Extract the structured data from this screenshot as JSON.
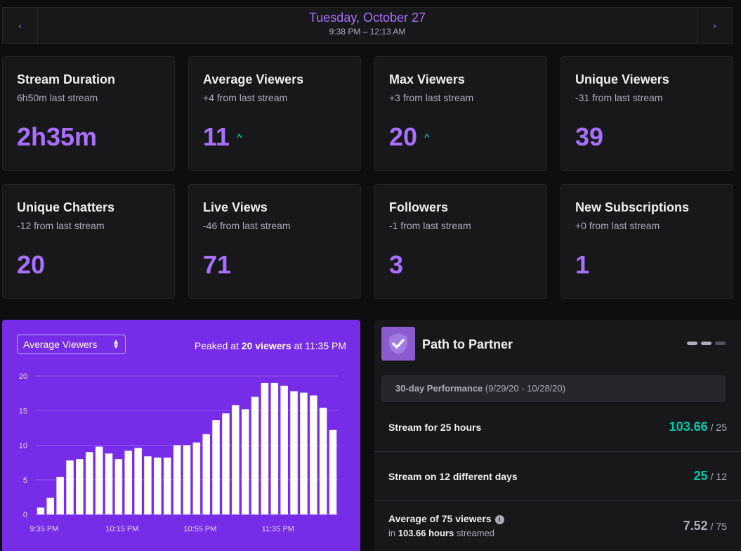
{
  "date_nav": {
    "prev_icon": "‹",
    "next_icon": "›",
    "title": "Tuesday, October 27",
    "range": "9:38 PM – 12:13 AM"
  },
  "stats": [
    {
      "title": "Stream Duration",
      "sub": "6h50m last stream",
      "value": "2h35m",
      "trend": ""
    },
    {
      "title": "Average Viewers",
      "sub": "+4 from last stream",
      "value": "11",
      "trend": "up"
    },
    {
      "title": "Max Viewers",
      "sub": "+3 from last stream",
      "value": "20",
      "trend": "up"
    },
    {
      "title": "Unique Viewers",
      "sub": "-31 from last stream",
      "value": "39",
      "trend": ""
    },
    {
      "title": "Unique Chatters",
      "sub": "-12 from last stream",
      "value": "20",
      "trend": ""
    },
    {
      "title": "Live Views",
      "sub": "-46 from last stream",
      "value": "71",
      "trend": ""
    },
    {
      "title": "Followers",
      "sub": "-1 from last stream",
      "value": "3",
      "trend": ""
    },
    {
      "title": "New Subscriptions",
      "sub": "+0 from last stream",
      "value": "1",
      "trend": ""
    }
  ],
  "trend_icon": "^",
  "chart_panel": {
    "select_value": "Average Viewers",
    "peak_prefix": "Peaked at ",
    "peak_value": "20 viewers",
    "peak_suffix": " at 11:35 PM"
  },
  "chart_data": {
    "type": "bar",
    "ylim": [
      0,
      20
    ],
    "yticks": [
      0,
      5,
      10,
      15,
      20
    ],
    "xtick_labels": [
      "9:35 PM",
      "10:15 PM",
      "10:55 PM",
      "11:35 PM"
    ],
    "xtick_bar_index": [
      0,
      8,
      16,
      24
    ],
    "values": [
      1,
      2.4,
      5.4,
      7.8,
      8,
      9,
      9.8,
      8.8,
      8,
      9.2,
      9.6,
      8.4,
      8.2,
      8.2,
      10,
      10,
      10.4,
      11.6,
      13.6,
      14.6,
      15.8,
      15.2,
      17,
      19,
      19,
      18.6,
      17.8,
      17.6,
      17.2,
      15.4,
      12.2
    ],
    "bar_color": "#ffffff",
    "grid_color": "#9457f0"
  },
  "partner": {
    "icon": "check-shield-icon",
    "title": "Path to Partner",
    "perf_bold": "30-day Performance",
    "perf_range": " (9/29/20 - 10/28/20)",
    "rows": [
      {
        "label": "Stream for 25 hours",
        "value": "103.66",
        "target": "/ 25",
        "color": "#00c8af"
      },
      {
        "label": "Stream on 12 different days",
        "value": "25",
        "target": "/ 12",
        "color": "#00c8af"
      },
      {
        "label": "Average of 75 viewers",
        "sub_prefix": "in ",
        "sub_bold": "103.66 hours",
        "sub_suffix": " streamed",
        "value": "7.52",
        "target": "/ 75",
        "color": "#adadb8"
      }
    ]
  }
}
